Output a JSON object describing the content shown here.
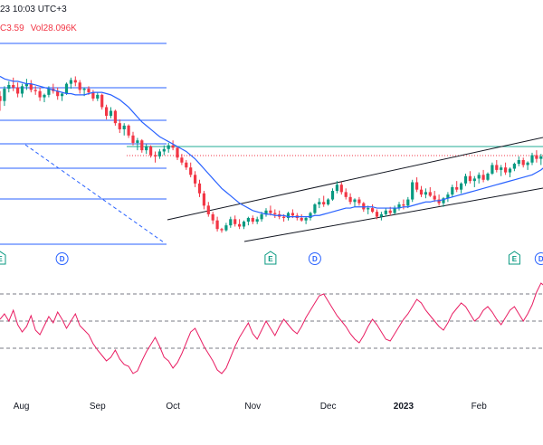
{
  "header": {
    "timestamp": "23 10:03 UTC+3",
    "change": "C3.59",
    "volume": "Vol28.096K"
  },
  "colors": {
    "up": "#089981",
    "down": "#f23645",
    "fib": "#2962ff",
    "ma": "#2962ff",
    "rsi": "#e91e63",
    "channel": "#131722",
    "fib_key": "#22ab94",
    "price_line": "#f23645"
  },
  "chart_data": [
    {
      "type": "candlestick",
      "title": "",
      "x_labels": [
        "Aug",
        "Sep",
        "Oct",
        "Nov",
        "Dec",
        "2023",
        "Feb"
      ],
      "series": [
        {
          "name": "",
          "kind": "ohlc",
          "values": [
            [
              144,
              148,
              132,
              140
            ],
            [
              140,
              152,
              136,
              150
            ],
            [
              150,
              156,
              147,
              153
            ],
            [
              153,
              159,
              148,
              151
            ],
            [
              151,
              155,
              143,
              146
            ],
            [
              146,
              154,
              143,
              152
            ],
            [
              152,
              158,
              149,
              154
            ],
            [
              154,
              157,
              147,
              149
            ],
            [
              149,
              152,
              145,
              148
            ],
            [
              148,
              151,
              140,
              143
            ],
            [
              143,
              146,
              139,
              145
            ],
            [
              145,
              152,
              143,
              150
            ],
            [
              150,
              154,
              146,
              148
            ],
            [
              148,
              151,
              141,
              144
            ],
            [
              144,
              147,
              140,
              146
            ],
            [
              146,
              155,
              145,
              154
            ],
            [
              154,
              159,
              150,
              157
            ],
            [
              157,
              160,
              152,
              155
            ],
            [
              155,
              157,
              146,
              149
            ],
            [
              149,
              151,
              144,
              150
            ],
            [
              150,
              152,
              145,
              147
            ],
            [
              147,
              149,
              140,
              142
            ],
            [
              142,
              147,
              140,
              145
            ],
            [
              145,
              146,
              133,
              135
            ],
            [
              135,
              137,
              125,
              128
            ],
            [
              128,
              135,
              126,
              132
            ],
            [
              132,
              133,
              120,
              122
            ],
            [
              122,
              125,
              114,
              117
            ],
            [
              117,
              122,
              112,
              120
            ],
            [
              120,
              121,
              110,
              112
            ],
            [
              112,
              115,
              104,
              106
            ],
            [
              106,
              110,
              100,
              108
            ],
            [
              108,
              109,
              98,
              100
            ],
            [
              100,
              105,
              97,
              103
            ],
            [
              103,
              104,
              94,
              96
            ],
            [
              96,
              99,
              90,
              95
            ],
            [
              95,
              101,
              93,
              99
            ],
            [
              99,
              104,
              96,
              101
            ],
            [
              101,
              106,
              98,
              104
            ],
            [
              104,
              108,
              100,
              102
            ],
            [
              102,
              103,
              92,
              94
            ],
            [
              94,
              97,
              88,
              90
            ],
            [
              90,
              92,
              84,
              86
            ],
            [
              86,
              90,
              78,
              80
            ],
            [
              80,
              83,
              70,
              73
            ],
            [
              73,
              76,
              62,
              65
            ],
            [
              65,
              67,
              52,
              55
            ],
            [
              55,
              58,
              46,
              48
            ],
            [
              48,
              50,
              40,
              43
            ],
            [
              43,
              46,
              34,
              36
            ],
            [
              36,
              37,
              33,
              35
            ],
            [
              35,
              41,
              34,
              39
            ],
            [
              39,
              46,
              37,
              44
            ],
            [
              44,
              47,
              38,
              40
            ],
            [
              40,
              44,
              36,
              38
            ],
            [
              38,
              43,
              36,
              42
            ],
            [
              42,
              46,
              39,
              45
            ],
            [
              45,
              47,
              40,
              42
            ],
            [
              42,
              46,
              40,
              44
            ],
            [
              44,
              50,
              42,
              48
            ],
            [
              48,
              53,
              46,
              51
            ],
            [
              51,
              55,
              47,
              49
            ],
            [
              49,
              52,
              45,
              48
            ],
            [
              48,
              51,
              44,
              46
            ],
            [
              46,
              48,
              42,
              45
            ],
            [
              45,
              50,
              43,
              49
            ],
            [
              49,
              52,
              45,
              47
            ],
            [
              47,
              49,
              43,
              45
            ],
            [
              45,
              48,
              42,
              43
            ],
            [
              43,
              46,
              40,
              45
            ],
            [
              45,
              50,
              43,
              49
            ],
            [
              49,
              57,
              48,
              56
            ],
            [
              56,
              61,
              53,
              58
            ],
            [
              58,
              63,
              54,
              56
            ],
            [
              56,
              61,
              55,
              60
            ],
            [
              60,
              69,
              59,
              67
            ],
            [
              67,
              75,
              65,
              72
            ],
            [
              72,
              74,
              64,
              66
            ],
            [
              66,
              69,
              60,
              62
            ],
            [
              62,
              65,
              56,
              58
            ],
            [
              58,
              61,
              54,
              60
            ],
            [
              60,
              62,
              55,
              57
            ],
            [
              57,
              58,
              50,
              52
            ],
            [
              52,
              55,
              48,
              53
            ],
            [
              53,
              56,
              49,
              50
            ],
            [
              50,
              52,
              44,
              46
            ],
            [
              46,
              50,
              43,
              48
            ],
            [
              48,
              53,
              46,
              51
            ],
            [
              51,
              54,
              47,
              49
            ],
            [
              49,
              55,
              48,
              53
            ],
            [
              53,
              58,
              51,
              56
            ],
            [
              56,
              60,
              52,
              55
            ],
            [
              55,
              62,
              53,
              60
            ],
            [
              60,
              76,
              58,
              74
            ],
            [
              74,
              78,
              66,
              68
            ],
            [
              68,
              71,
              62,
              64
            ],
            [
              64,
              69,
              61,
              66
            ],
            [
              66,
              70,
              62,
              63
            ],
            [
              63,
              67,
              58,
              60
            ],
            [
              60,
              64,
              55,
              57
            ],
            [
              57,
              62,
              54,
              61
            ],
            [
              61,
              66,
              58,
              64
            ],
            [
              64,
              72,
              62,
              70
            ],
            [
              70,
              75,
              66,
              68
            ],
            [
              68,
              74,
              65,
              73
            ],
            [
              73,
              81,
              71,
              79
            ],
            [
              79,
              83,
              73,
              75
            ],
            [
              75,
              79,
              70,
              77
            ],
            [
              77,
              82,
              73,
              80
            ],
            [
              80,
              84,
              74,
              76
            ],
            [
              76,
              82,
              75,
              81
            ],
            [
              81,
              90,
              80,
              88
            ],
            [
              88,
              92,
              82,
              84
            ],
            [
              84,
              88,
              79,
              86
            ],
            [
              86,
              90,
              80,
              82
            ],
            [
              82,
              86,
              78,
              85
            ],
            [
              85,
              90,
              83,
              89
            ],
            [
              89,
              95,
              87,
              92
            ],
            [
              92,
              94,
              86,
              88
            ],
            [
              88,
              91,
              84,
              90
            ],
            [
              90,
              98,
              88,
              96
            ],
            [
              96,
              100,
              90,
              93
            ],
            [
              93,
              97,
              88,
              95
            ],
            [
              95,
              99,
              91,
              97
            ],
            [
              97,
              104,
              95,
              102
            ],
            [
              102,
              135,
              101,
              128
            ],
            [
              128,
              148,
              126,
              144
            ],
            [
              144,
              152,
              138,
              141
            ]
          ]
        },
        {
          "name": "",
          "kind": "ma",
          "values": [
            160,
            158,
            157,
            156,
            156,
            155,
            154,
            154,
            153,
            152,
            151,
            150,
            149,
            148,
            147,
            146,
            146,
            145,
            145,
            145,
            146,
            147,
            147,
            147,
            146,
            145,
            143,
            141,
            138,
            135,
            131,
            127,
            123,
            120,
            117,
            114,
            111,
            109,
            107,
            105,
            103,
            101,
            99,
            96,
            93,
            89,
            85,
            81,
            77,
            73,
            69,
            66,
            63,
            60,
            57,
            55,
            53,
            51,
            50,
            49,
            48,
            48,
            47,
            47,
            47,
            46,
            46,
            46,
            46,
            46,
            46,
            47,
            47,
            48,
            49,
            50,
            51,
            52,
            53,
            53,
            54,
            54,
            54,
            54,
            54,
            53,
            53,
            53,
            53,
            53,
            53,
            54,
            54,
            55,
            56,
            57,
            58,
            58,
            59,
            59,
            60,
            61,
            62,
            63,
            64,
            65,
            66,
            67,
            68,
            69,
            70,
            71,
            72,
            73,
            74,
            75,
            76,
            77,
            78,
            79,
            80,
            82,
            84,
            87
          ]
        },
        {
          "name": "",
          "kind": "rsi",
          "values": [
            52,
            58,
            50,
            62,
            46,
            38,
            44,
            56,
            40,
            35,
            45,
            55,
            48,
            60,
            52,
            42,
            50,
            58,
            45,
            40,
            35,
            25,
            18,
            12,
            6,
            10,
            18,
            8,
            2,
            0,
            -8,
            -5,
            6,
            16,
            24,
            32,
            22,
            10,
            6,
            -2,
            4,
            14,
            26,
            38,
            42,
            32,
            22,
            14,
            6,
            -4,
            -8,
            -2,
            10,
            22,
            32,
            40,
            48,
            36,
            30,
            40,
            50,
            42,
            34,
            44,
            52,
            46,
            40,
            36,
            44,
            54,
            62,
            70,
            78,
            80,
            72,
            64,
            56,
            50,
            44,
            36,
            30,
            26,
            34,
            44,
            52,
            46,
            38,
            30,
            28,
            36,
            44,
            52,
            58,
            66,
            74,
            70,
            62,
            56,
            50,
            44,
            40,
            48,
            58,
            64,
            70,
            66,
            58,
            50,
            54,
            62,
            66,
            60,
            52,
            46,
            54,
            62,
            66,
            58,
            50,
            58,
            68,
            82,
            92,
            88
          ]
        }
      ]
    }
  ]
}
